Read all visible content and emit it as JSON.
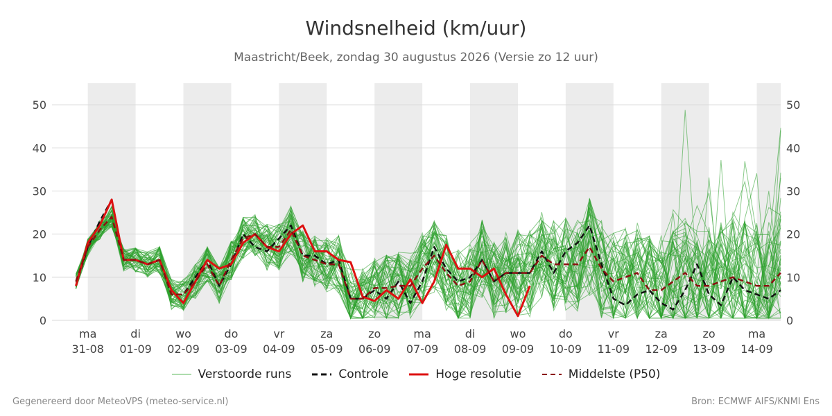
{
  "title": "Windsnelheid (km/uur)",
  "subtitle": "Maastricht/Beek, zondag 30 augustus 2026 (Versie zo 12 uur)",
  "footer_left": "Gegenereerd door MeteoVPS (meteo-service.nl)",
  "footer_right": "Bron: ECMWF AIFS/KNMI Ens",
  "legend": [
    {
      "label": "Verstoorde runs",
      "color": "#2ca02c",
      "style": "thin"
    },
    {
      "label": "Controle",
      "color": "#111111",
      "style": "dashed"
    },
    {
      "label": "Hoge resolutie",
      "color": "#dd1111",
      "style": "solid"
    },
    {
      "label": "Middelste (P50)",
      "color": "#8b1010",
      "style": "dashed"
    }
  ],
  "chart_data": {
    "type": "line",
    "title": "Windsnelheid (km/uur)",
    "x_unit": "day index from 31-08 (00h) in 6-hour steps",
    "x_days": [
      "ma\n31-08",
      "di\n01-09",
      "wo\n02-09",
      "do\n03-09",
      "vr\n04-09",
      "za\n05-09",
      "zo\n06-09",
      "ma\n07-09",
      "di\n08-09",
      "wo\n09-09",
      "do\n10-09",
      "vr\n11-09",
      "za\n12-09",
      "zo\n13-09",
      "ma\n14-09"
    ],
    "x_day_labels": [
      "ma",
      "di",
      "wo",
      "do",
      "vr",
      "za",
      "zo",
      "ma",
      "di",
      "wo",
      "do",
      "vr",
      "za",
      "zo",
      "ma"
    ],
    "x_date_labels": [
      "31-08",
      "01-09",
      "02-09",
      "03-09",
      "04-09",
      "05-09",
      "06-09",
      "07-09",
      "08-09",
      "09-09",
      "10-09",
      "11-09",
      "12-09",
      "13-09",
      "14-09"
    ],
    "ylim": [
      0,
      55
    ],
    "yticks": [
      0,
      10,
      20,
      30,
      40,
      50
    ],
    "grid": true,
    "legend_position": "bottom",
    "shaded_days": [
      "ma",
      "wo",
      "vr",
      "zo",
      "di",
      "do",
      "za",
      "ma"
    ],
    "series": [
      {
        "name": "Controle",
        "color": "#111111",
        "dash": "8,5",
        "x": [
          -0.25,
          0,
          0.25,
          0.5,
          0.75,
          1,
          1.25,
          1.5,
          1.75,
          2,
          2.25,
          2.5,
          2.75,
          3,
          3.25,
          3.5,
          3.75,
          4,
          4.25,
          4.5,
          4.75,
          5,
          5.25,
          5.5,
          5.75,
          6,
          6.25,
          6.5,
          6.75,
          7,
          7.25,
          7.5,
          7.75,
          8,
          8.25,
          8.5,
          8.75,
          9,
          9.25,
          9.5,
          9.75,
          10,
          10.25,
          10.5,
          10.75,
          11,
          11.25,
          11.5,
          11.75,
          12,
          12.25,
          12.5,
          12.75,
          13,
          13.25,
          13.5,
          13.75,
          14,
          14.25,
          14.5
        ],
        "values": [
          8,
          17,
          23,
          28,
          14,
          14,
          13,
          14,
          6,
          6,
          10,
          14,
          8,
          13,
          20,
          17,
          16,
          19,
          22,
          15,
          15,
          13,
          14,
          5,
          5,
          7,
          5,
          9,
          4,
          9,
          17,
          12,
          9,
          10,
          14,
          9,
          11,
          11,
          11,
          16,
          11,
          16,
          18,
          22,
          13,
          5,
          3.5,
          6,
          7,
          4,
          2.5,
          7,
          13,
          6,
          3.5,
          10,
          7,
          6,
          5,
          7
        ],
        "style": "dashed"
      },
      {
        "name": "Hoge resolutie",
        "color": "#dd1111",
        "x": [
          -0.25,
          0,
          0.25,
          0.5,
          0.75,
          1,
          1.25,
          1.5,
          1.75,
          2,
          2.25,
          2.5,
          2.75,
          3,
          3.25,
          3.5,
          3.75,
          4,
          4.25,
          4.5,
          4.75,
          5,
          5.25,
          5.5,
          5.75,
          6,
          6.25,
          6.5,
          6.75,
          7,
          7.25,
          7.5,
          7.75,
          8,
          8.25,
          8.5,
          8.75,
          9,
          9.25
        ],
        "values": [
          8,
          18,
          22,
          28,
          14,
          14,
          13,
          14,
          7,
          4,
          9,
          14,
          12,
          13,
          18,
          20,
          17,
          16,
          20,
          22,
          16,
          16,
          14,
          13.5,
          5.5,
          4.5,
          7,
          5,
          9.5,
          4,
          9,
          17.5,
          12,
          12,
          10,
          12,
          6,
          1,
          8
        ],
        "style": "solid"
      },
      {
        "name": "Middelste (P50)",
        "color": "#8b1010",
        "dash": "8,5",
        "x": [
          -0.25,
          0,
          0.25,
          0.5,
          0.75,
          1,
          1.25,
          1.5,
          1.75,
          2,
          2.25,
          2.5,
          2.75,
          3,
          3.25,
          3.5,
          3.75,
          4,
          4.25,
          4.5,
          4.75,
          5,
          5.25,
          5.5,
          5.75,
          6,
          6.25,
          6.5,
          6.75,
          7,
          7.25,
          7.5,
          7.75,
          8,
          8.25,
          8.5,
          8.75,
          9,
          9.25,
          9.5,
          9.75,
          10,
          10.25,
          10.5,
          10.75,
          11,
          11.25,
          11.5,
          11.75,
          12,
          12.25,
          12.5,
          12.75,
          13,
          13.25,
          13.5,
          13.75,
          14,
          14.25,
          14.5
        ],
        "values": [
          9,
          17,
          21,
          24,
          14,
          14,
          13,
          14,
          6,
          6,
          9,
          13,
          8,
          14,
          19,
          20,
          17,
          17,
          21,
          15,
          14,
          13,
          13,
          5,
          5,
          7.5,
          7.5,
          8,
          8,
          12,
          15,
          11,
          8,
          9,
          14,
          9,
          11,
          11,
          11,
          15,
          13,
          13,
          13,
          17,
          12,
          9,
          10,
          11,
          7,
          7,
          9,
          11,
          8,
          8,
          9,
          10,
          9,
          8,
          8,
          11
        ],
        "style": "dashed"
      }
    ],
    "ensemble_members": 50,
    "ensemble_color": "#2ca02c"
  }
}
